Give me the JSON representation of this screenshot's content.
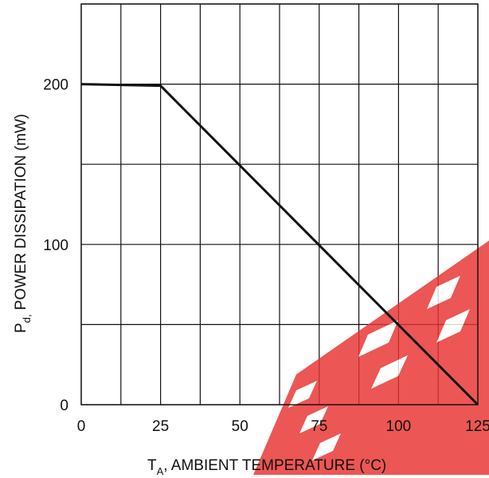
{
  "chart_data": {
    "type": "line",
    "title": "",
    "xlabel": {
      "prefix": "T",
      "sub": "A",
      "rest": ",  AMBIENT TEMPERATURE (°C)"
    },
    "ylabel": {
      "prefix": "P",
      "sub": "d,",
      "rest": "  POWER DISSIPATION (mW)"
    },
    "xlim": [
      0,
      125
    ],
    "ylim": [
      0,
      250
    ],
    "x_ticks": [
      0,
      25,
      50,
      75,
      100,
      125
    ],
    "y_ticks": [
      0,
      100,
      200
    ],
    "x_gridlines": [
      0,
      12.5,
      25,
      37.5,
      50,
      62.5,
      75,
      87.5,
      100,
      112.5,
      125
    ],
    "y_gridlines": [
      0,
      50,
      100,
      150,
      200,
      250
    ],
    "grid": true,
    "series": [
      {
        "x": [
          0,
          25,
          125
        ],
        "y": [
          200,
          199,
          0
        ]
      }
    ]
  },
  "watermark": {
    "color": "#e8322f"
  }
}
